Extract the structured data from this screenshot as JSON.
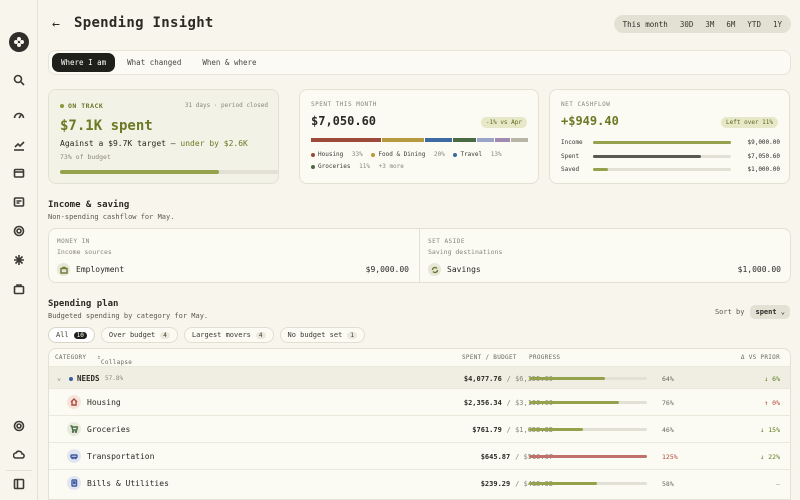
{
  "page": {
    "title": "Spending Insight",
    "back_label": "←"
  },
  "ranges": [
    "This month",
    "30D",
    "3M",
    "6M",
    "YTD",
    "1Y"
  ],
  "tabs": [
    "Where I am",
    "What changed",
    "When & where"
  ],
  "cards": {
    "status": {
      "label": "ON TRACK",
      "period": "31 days · period closed",
      "spent": "$7.1K spent",
      "target_prefix": "Against a $9.7K target — ",
      "target_highlight": "under by $2.6K",
      "budget_pct": "73% of budget",
      "progress": 0.73
    },
    "spent": {
      "label": "SPENT THIS MONTH",
      "amount": "$7,050.60",
      "delta": "-1% vs Apr",
      "segments": [
        {
          "name": "Housing",
          "pct": "33%",
          "share": 0.33,
          "color": "#9c4a3a"
        },
        {
          "name": "Food & Dining",
          "pct": "20%",
          "share": 0.2,
          "color": "#b59a3e"
        },
        {
          "name": "Travel",
          "pct": "13%",
          "share": 0.13,
          "color": "#3d6aa3"
        },
        {
          "name": "Groceries",
          "pct": "11%",
          "share": 0.11,
          "color": "#4a6a44"
        },
        {
          "name": "",
          "pct": "",
          "share": 0.08,
          "color": "#9aa3c8"
        },
        {
          "name": "",
          "pct": "",
          "share": 0.07,
          "color": "#a08ab0"
        },
        {
          "name": "",
          "pct": "",
          "share": 0.08,
          "color": "#b9b6a6"
        }
      ],
      "more": "+3 more"
    },
    "cashflow": {
      "label": "NET CASHFLOW",
      "amount": "+$949.40",
      "badge": "Left over 11%",
      "rows": [
        {
          "label": "Income",
          "value": "$9,000.00",
          "fraction": 1.0,
          "color": "#94a24c"
        },
        {
          "label": "Spent",
          "value": "$7,050.60",
          "fraction": 0.78,
          "color": "#5a5950"
        },
        {
          "label": "Saved",
          "value": "$1,000.00",
          "fraction": 0.11,
          "color": "#94a24c"
        }
      ]
    }
  },
  "income": {
    "title": "Income & saving",
    "subtitle": "Non-spending cashflow for May.",
    "money_in": {
      "label": "MONEY IN",
      "sub": "Income sources",
      "name": "Employment",
      "amount": "$9,000.00"
    },
    "set_aside": {
      "label": "SET ASIDE",
      "sub": "Saving destinations",
      "name": "Savings",
      "amount": "$1,000.00"
    }
  },
  "plan": {
    "title": "Spending plan",
    "subtitle": "Budgeted spending by category for May.",
    "sort_label": "Sort by",
    "sort_value": "spent",
    "filters": [
      {
        "label": "All",
        "count": "10"
      },
      {
        "label": "Over budget",
        "count": "4"
      },
      {
        "label": "Largest movers",
        "count": "4"
      },
      {
        "label": "No budget set",
        "count": "1"
      }
    ],
    "headers": {
      "category": "CATEGORY",
      "collapse": "Collapse all",
      "spent": "SPENT / BUDGET",
      "progress": "PROGRESS",
      "delta": "Δ VS PRIOR"
    },
    "group": {
      "name": "NEEDS",
      "share": "57.8%",
      "spent": "$4,077.76",
      "budget": "/ $6,355.00",
      "pct": "64%",
      "progress": 0.64,
      "delta": "↓ 6%"
    },
    "rows": [
      {
        "name": "Housing",
        "spent": "$2,356.34",
        "budget": "/ $3,100.00",
        "pct": "76%",
        "progress": 0.76,
        "delta": "↑ 0%",
        "delta_color": "#b0483a",
        "bar_color": "#94a24c"
      },
      {
        "name": "Groceries",
        "spent": "$761.79",
        "budget": "/ $1,653.33",
        "pct": "46%",
        "progress": 0.46,
        "delta": "↓ 15%",
        "delta_color": "#5a7a1a",
        "bar_color": "#94a24c"
      },
      {
        "name": "Transportation",
        "spent": "$645.87",
        "budget": "/ $516.67",
        "pct": "125%",
        "progress": 1.0,
        "delta": "↓ 22%",
        "delta_color": "#5a7a1a",
        "bar_color": "#c0706a"
      },
      {
        "name": "Bills & Utilities",
        "spent": "$239.29",
        "budget": "/ $413.33",
        "pct": "58%",
        "progress": 0.58,
        "delta": "—",
        "delta_color": "#8a877a",
        "bar_color": "#94a24c"
      }
    ]
  }
}
